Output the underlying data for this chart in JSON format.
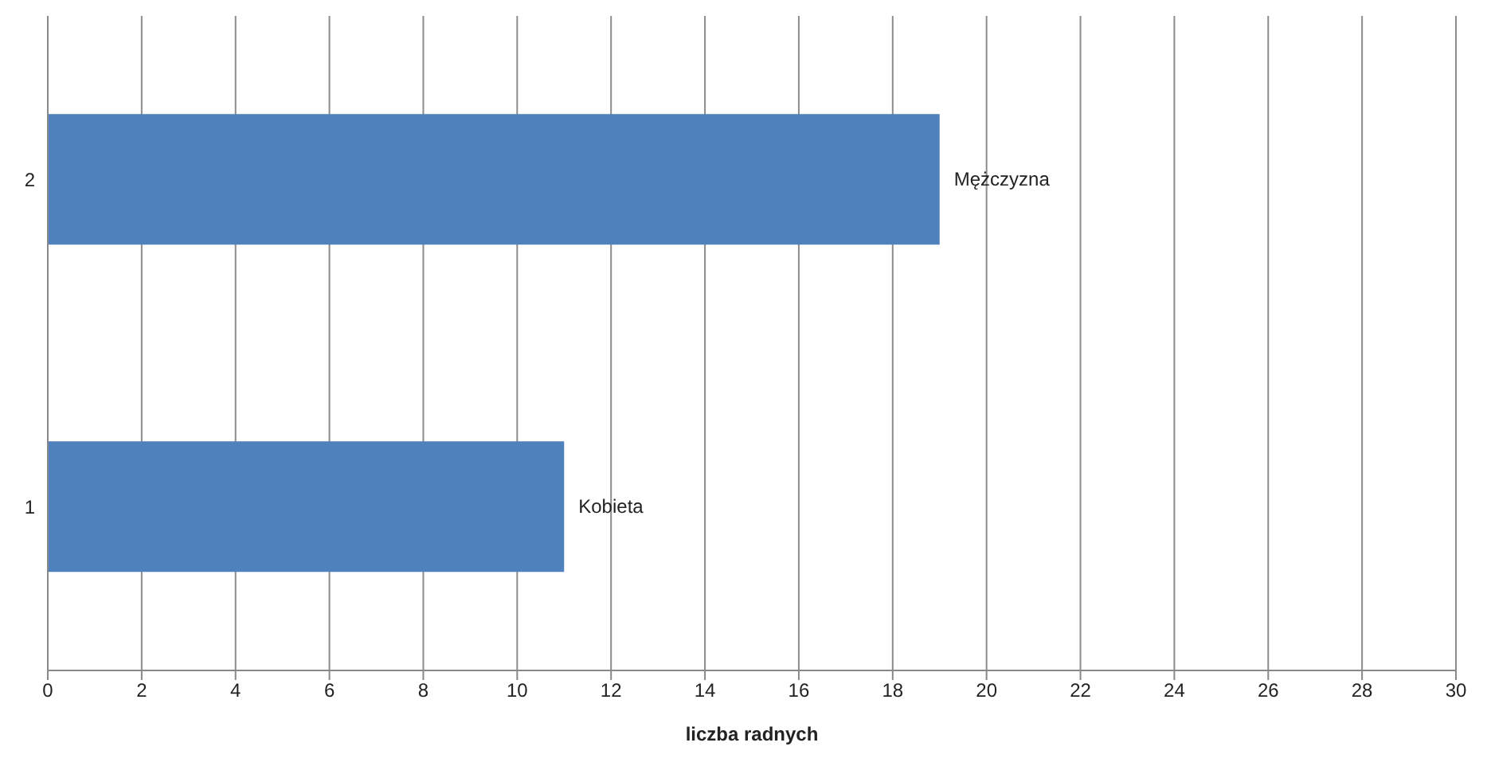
{
  "chart_data": {
    "type": "bar",
    "orientation": "horizontal",
    "categories": [
      "2",
      "1"
    ],
    "series": [
      {
        "color": "#4f81bd",
        "values": [
          19,
          11
        ]
      }
    ],
    "xlabel": "liczba radnych",
    "xlim": [
      0,
      30
    ],
    "xticks": [
      0,
      2,
      4,
      6,
      8,
      10,
      12,
      14,
      16,
      18,
      20,
      22,
      24,
      26,
      28,
      30
    ],
    "grid": "x",
    "legend": false,
    "annotations": [
      {
        "text": "Mężczyzna",
        "x": 19,
        "y": "2"
      },
      {
        "text": "Kobieta",
        "x": 11,
        "y": "1"
      }
    ]
  }
}
